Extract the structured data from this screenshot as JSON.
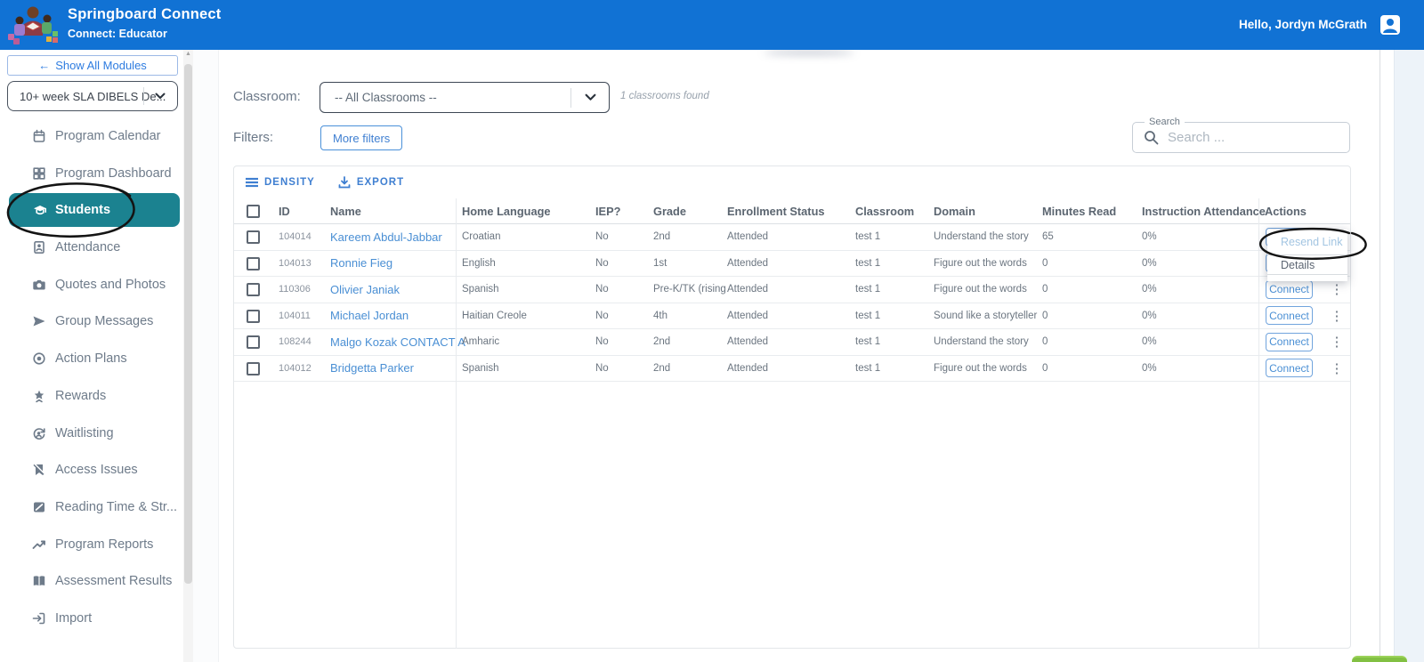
{
  "colors": {
    "header_blue": "#1172d4",
    "accent_blue": "#3f7fd1",
    "link_blue": "#4a8fd4",
    "active_teal": "#1b8290",
    "annotation_black": "#141414",
    "beacon_green": "#82c043"
  },
  "header": {
    "title": "Springboard Connect",
    "subtitle": "Connect: Educator",
    "greeting": "Hello, Jordyn McGrath"
  },
  "sidebar": {
    "show_all_modules": "Show All Modules",
    "module_select_value": "10+ week SLA DIBELS De...",
    "items": [
      {
        "label": "Program Calendar",
        "icon": "calendar-icon",
        "active": false
      },
      {
        "label": "Program Dashboard",
        "icon": "dashboard-icon",
        "active": false
      },
      {
        "label": "Students",
        "icon": "graduation-cap-icon",
        "active": true
      },
      {
        "label": "Attendance",
        "icon": "attendance-icon",
        "active": false
      },
      {
        "label": "Quotes and Photos",
        "icon": "camera-icon",
        "active": false
      },
      {
        "label": "Group Messages",
        "icon": "send-icon",
        "active": false
      },
      {
        "label": "Action Plans",
        "icon": "target-icon",
        "active": false
      },
      {
        "label": "Rewards",
        "icon": "star-icon",
        "active": false
      },
      {
        "label": "Waitlisting",
        "icon": "waitlist-icon",
        "active": false
      },
      {
        "label": "Access Issues",
        "icon": "bookmark-slash-icon",
        "active": false
      },
      {
        "label": "Reading Time & Str...",
        "icon": "reading-time-icon",
        "active": false
      },
      {
        "label": "Program Reports",
        "icon": "trend-icon",
        "active": false
      },
      {
        "label": "Assessment Results",
        "icon": "book-icon",
        "active": false
      },
      {
        "label": "Import",
        "icon": "import-icon",
        "active": false
      }
    ]
  },
  "filters": {
    "classroom_label": "Classroom:",
    "classroom_value": "-- All Classrooms --",
    "classrooms_found": "1 classrooms found",
    "filters_label": "Filters:",
    "more_filters_label": "More filters",
    "search_label": "Search",
    "search_placeholder": "Search ...",
    "search_value": ""
  },
  "table": {
    "toolbar": {
      "density_label": "DENSITY",
      "export_label": "EXPORT"
    },
    "columns": [
      "ID",
      "Name",
      "Home Language",
      "IEP?",
      "Grade",
      "Enrollment Status",
      "Classroom",
      "Domain",
      "Minutes Read",
      "Instruction Attendance",
      "Actions"
    ],
    "action_button_label": "Connect",
    "rows": [
      {
        "id": "104014",
        "name": "Kareem Abdul-Jabbar",
        "home_language": "Croatian",
        "iep": "No",
        "grade": "2nd",
        "enrollment_status": "Attended",
        "classroom": "test 1",
        "domain": "Understand the story",
        "minutes_read": "65",
        "instruction_attendance": "0%"
      },
      {
        "id": "104013",
        "name": "Ronnie Fieg",
        "home_language": "English",
        "iep": "No",
        "grade": "1st",
        "enrollment_status": "Attended",
        "classroom": "test 1",
        "domain": "Figure out the words",
        "minutes_read": "0",
        "instruction_attendance": "0%"
      },
      {
        "id": "110306",
        "name": "Olivier Janiak",
        "home_language": "Spanish",
        "iep": "No",
        "grade": "Pre-K/TK (rising",
        "enrollment_status": "Attended",
        "classroom": "test 1",
        "domain": "Figure out the words",
        "minutes_read": "0",
        "instruction_attendance": "0%"
      },
      {
        "id": "104011",
        "name": "Michael Jordan",
        "home_language": "Haitian Creole",
        "iep": "No",
        "grade": "4th",
        "enrollment_status": "Attended",
        "classroom": "test 1",
        "domain": "Sound like a storyteller",
        "minutes_read": "0",
        "instruction_attendance": "0%"
      },
      {
        "id": "108244",
        "name": "Malgo Kozak CONTACT A",
        "home_language": "Amharic",
        "iep": "No",
        "grade": "2nd",
        "enrollment_status": "Attended",
        "classroom": "test 1",
        "domain": "Understand the story",
        "minutes_read": "0",
        "instruction_attendance": "0%"
      },
      {
        "id": "104012",
        "name": "Bridgetta Parker",
        "home_language": "Spanish",
        "iep": "No",
        "grade": "2nd",
        "enrollment_status": "Attended",
        "classroom": "test 1",
        "domain": "Figure out the words",
        "minutes_read": "0",
        "instruction_attendance": "0%"
      }
    ]
  },
  "action_menu": {
    "items": [
      {
        "label": "Resend Link",
        "disabled": true
      },
      {
        "label": "Details",
        "disabled": false
      }
    ]
  }
}
